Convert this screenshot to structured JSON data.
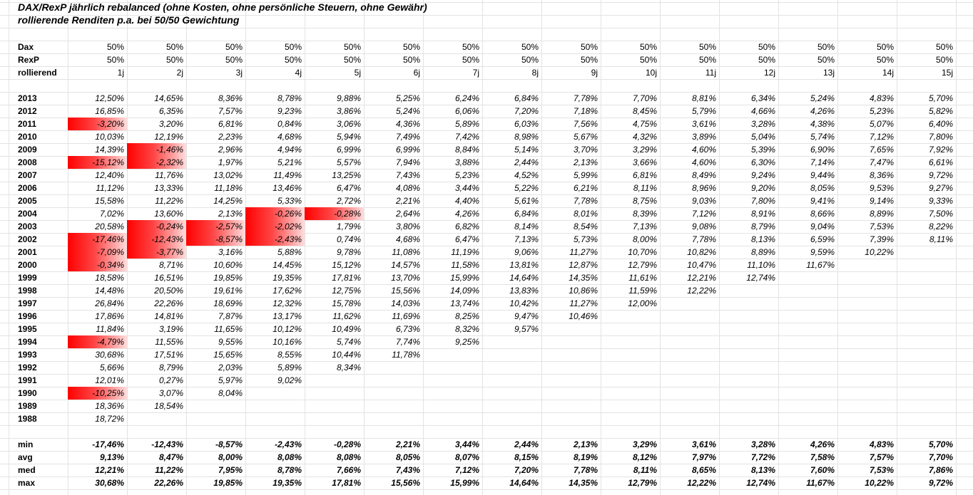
{
  "title_line1": "DAX/RexP jährlich rebalanced (ohne Kosten, ohne persönliche Steuern, ohne Gewähr)",
  "title_line2": "rollierende Renditen p.a. bei 50/50 Gewichtung",
  "negative_color": "#ff0000",
  "header_rows": [
    {
      "label": "Dax",
      "values": [
        "50%",
        "50%",
        "50%",
        "50%",
        "50%",
        "50%",
        "50%",
        "50%",
        "50%",
        "50%",
        "50%",
        "50%",
        "50%",
        "50%",
        "50%"
      ]
    },
    {
      "label": "RexP",
      "values": [
        "50%",
        "50%",
        "50%",
        "50%",
        "50%",
        "50%",
        "50%",
        "50%",
        "50%",
        "50%",
        "50%",
        "50%",
        "50%",
        "50%",
        "50%"
      ]
    },
    {
      "label": "rollierend",
      "values": [
        "1j",
        "2j",
        "3j",
        "4j",
        "5j",
        "6j",
        "7j",
        "8j",
        "9j",
        "10j",
        "11j",
        "12j",
        "13j",
        "14j",
        "15j"
      ]
    }
  ],
  "rows": [
    {
      "year": "2013",
      "values": [
        "12,50%",
        "14,65%",
        "8,36%",
        "8,78%",
        "9,88%",
        "5,25%",
        "6,24%",
        "6,84%",
        "7,78%",
        "7,70%",
        "8,81%",
        "6,34%",
        "5,24%",
        "4,83%",
        "5,70%"
      ]
    },
    {
      "year": "2012",
      "values": [
        "16,85%",
        "6,35%",
        "7,57%",
        "9,23%",
        "3,86%",
        "5,24%",
        "6,06%",
        "7,20%",
        "7,18%",
        "8,45%",
        "5,79%",
        "4,66%",
        "4,26%",
        "5,23%",
        "5,82%"
      ]
    },
    {
      "year": "2011",
      "values": [
        "-3,20%",
        "3,20%",
        "6,81%",
        "0,84%",
        "3,06%",
        "4,36%",
        "5,89%",
        "6,03%",
        "7,56%",
        "4,75%",
        "3,61%",
        "3,28%",
        "4,38%",
        "5,07%",
        "6,40%"
      ]
    },
    {
      "year": "2010",
      "values": [
        "10,03%",
        "12,19%",
        "2,23%",
        "4,68%",
        "5,94%",
        "7,49%",
        "7,42%",
        "8,98%",
        "5,67%",
        "4,32%",
        "3,89%",
        "5,04%",
        "5,74%",
        "7,12%",
        "7,80%"
      ]
    },
    {
      "year": "2009",
      "values": [
        "14,39%",
        "-1,46%",
        "2,96%",
        "4,94%",
        "6,99%",
        "6,99%",
        "8,84%",
        "5,14%",
        "3,70%",
        "3,29%",
        "4,60%",
        "5,39%",
        "6,90%",
        "7,65%",
        "7,92%"
      ]
    },
    {
      "year": "2008",
      "values": [
        "-15,12%",
        "-2,32%",
        "1,97%",
        "5,21%",
        "5,57%",
        "7,94%",
        "3,88%",
        "2,44%",
        "2,13%",
        "3,66%",
        "4,60%",
        "6,30%",
        "7,14%",
        "7,47%",
        "6,61%"
      ]
    },
    {
      "year": "2007",
      "values": [
        "12,40%",
        "11,76%",
        "13,02%",
        "11,49%",
        "13,25%",
        "7,43%",
        "5,23%",
        "4,52%",
        "5,99%",
        "6,81%",
        "8,49%",
        "9,24%",
        "9,44%",
        "8,36%",
        "9,72%"
      ]
    },
    {
      "year": "2006",
      "values": [
        "11,12%",
        "13,33%",
        "11,18%",
        "13,46%",
        "6,47%",
        "4,08%",
        "3,44%",
        "5,22%",
        "6,21%",
        "8,11%",
        "8,96%",
        "9,20%",
        "8,05%",
        "9,53%",
        "9,27%"
      ]
    },
    {
      "year": "2005",
      "values": [
        "15,58%",
        "11,22%",
        "14,25%",
        "5,33%",
        "2,72%",
        "2,21%",
        "4,40%",
        "5,61%",
        "7,78%",
        "8,75%",
        "9,03%",
        "7,80%",
        "9,41%",
        "9,14%",
        "9,33%"
      ]
    },
    {
      "year": "2004",
      "values": [
        "7,02%",
        "13,60%",
        "2,13%",
        "-0,26%",
        "-0,28%",
        "2,64%",
        "4,26%",
        "6,84%",
        "8,01%",
        "8,39%",
        "7,12%",
        "8,91%",
        "8,66%",
        "8,89%",
        "7,50%"
      ]
    },
    {
      "year": "2003",
      "values": [
        "20,58%",
        "-0,24%",
        "-2,57%",
        "-2,02%",
        "1,79%",
        "3,80%",
        "6,82%",
        "8,14%",
        "8,54%",
        "7,13%",
        "9,08%",
        "8,79%",
        "9,04%",
        "7,53%",
        "8,22%"
      ]
    },
    {
      "year": "2002",
      "values": [
        "-17,46%",
        "-12,43%",
        "-8,57%",
        "-2,43%",
        "0,74%",
        "4,68%",
        "6,47%",
        "7,13%",
        "5,73%",
        "8,00%",
        "7,78%",
        "8,13%",
        "6,59%",
        "7,39%",
        "8,11%"
      ]
    },
    {
      "year": "2001",
      "values": [
        "-7,09%",
        "-3,77%",
        "3,16%",
        "5,88%",
        "9,78%",
        "11,08%",
        "11,19%",
        "9,06%",
        "11,27%",
        "10,70%",
        "10,82%",
        "8,89%",
        "9,59%",
        "10,22%",
        ""
      ]
    },
    {
      "year": "2000",
      "values": [
        "-0,34%",
        "8,71%",
        "10,60%",
        "14,45%",
        "15,12%",
        "14,57%",
        "11,58%",
        "13,81%",
        "12,87%",
        "12,79%",
        "10,47%",
        "11,10%",
        "11,67%",
        "",
        ""
      ]
    },
    {
      "year": "1999",
      "values": [
        "18,58%",
        "16,51%",
        "19,85%",
        "19,35%",
        "17,81%",
        "13,70%",
        "15,99%",
        "14,64%",
        "14,35%",
        "11,61%",
        "12,21%",
        "12,74%",
        "",
        "",
        ""
      ]
    },
    {
      "year": "1998",
      "values": [
        "14,48%",
        "20,50%",
        "19,61%",
        "17,62%",
        "12,75%",
        "15,56%",
        "14,09%",
        "13,83%",
        "10,86%",
        "11,59%",
        "12,22%",
        "",
        "",
        "",
        ""
      ]
    },
    {
      "year": "1997",
      "values": [
        "26,84%",
        "22,26%",
        "18,69%",
        "12,32%",
        "15,78%",
        "14,03%",
        "13,74%",
        "10,42%",
        "11,27%",
        "12,00%",
        "",
        "",
        "",
        "",
        ""
      ]
    },
    {
      "year": "1996",
      "values": [
        "17,86%",
        "14,81%",
        "7,87%",
        "13,17%",
        "11,62%",
        "11,69%",
        "8,25%",
        "9,47%",
        "10,46%",
        "",
        "",
        "",
        "",
        "",
        ""
      ]
    },
    {
      "year": "1995",
      "values": [
        "11,84%",
        "3,19%",
        "11,65%",
        "10,12%",
        "10,49%",
        "6,73%",
        "8,32%",
        "9,57%",
        "",
        "",
        "",
        "",
        "",
        "",
        ""
      ]
    },
    {
      "year": "1994",
      "values": [
        "-4,79%",
        "11,55%",
        "9,55%",
        "10,16%",
        "5,74%",
        "7,74%",
        "9,25%",
        "",
        "",
        "",
        "",
        "",
        "",
        "",
        ""
      ]
    },
    {
      "year": "1993",
      "values": [
        "30,68%",
        "17,51%",
        "15,65%",
        "8,55%",
        "10,44%",
        "11,78%",
        "",
        "",
        "",
        "",
        "",
        "",
        "",
        "",
        ""
      ]
    },
    {
      "year": "1992",
      "values": [
        "5,66%",
        "8,79%",
        "2,03%",
        "5,89%",
        "8,34%",
        "",
        "",
        "",
        "",
        "",
        "",
        "",
        "",
        "",
        ""
      ]
    },
    {
      "year": "1991",
      "values": [
        "12,01%",
        "0,27%",
        "5,97%",
        "9,02%",
        "",
        "",
        "",
        "",
        "",
        "",
        "",
        "",
        "",
        "",
        ""
      ]
    },
    {
      "year": "1990",
      "values": [
        "-10,25%",
        "3,07%",
        "8,04%",
        "",
        "",
        "",
        "",
        "",
        "",
        "",
        "",
        "",
        "",
        "",
        ""
      ]
    },
    {
      "year": "1989",
      "values": [
        "18,36%",
        "18,54%",
        "",
        "",
        "",
        "",
        "",
        "",
        "",
        "",
        "",
        "",
        "",
        "",
        ""
      ]
    },
    {
      "year": "1988",
      "values": [
        "18,72%",
        "",
        "",
        "",
        "",
        "",
        "",
        "",
        "",
        "",
        "",
        "",
        "",
        "",
        ""
      ]
    }
  ],
  "stats": [
    {
      "label": "min",
      "values": [
        "-17,46%",
        "-12,43%",
        "-8,57%",
        "-2,43%",
        "-0,28%",
        "2,21%",
        "3,44%",
        "2,44%",
        "2,13%",
        "3,29%",
        "3,61%",
        "3,28%",
        "4,26%",
        "4,83%",
        "5,70%"
      ]
    },
    {
      "label": "avg",
      "values": [
        "9,13%",
        "8,47%",
        "8,00%",
        "8,08%",
        "8,08%",
        "8,05%",
        "8,07%",
        "8,15%",
        "8,19%",
        "8,12%",
        "7,97%",
        "7,72%",
        "7,58%",
        "7,57%",
        "7,70%"
      ]
    },
    {
      "label": "med",
      "values": [
        "12,21%",
        "11,22%",
        "7,95%",
        "8,78%",
        "7,66%",
        "7,43%",
        "7,12%",
        "7,20%",
        "7,78%",
        "8,11%",
        "8,65%",
        "8,13%",
        "7,60%",
        "7,53%",
        "7,86%"
      ]
    },
    {
      "label": "max",
      "values": [
        "30,68%",
        "22,26%",
        "19,85%",
        "19,35%",
        "17,81%",
        "15,56%",
        "15,99%",
        "14,64%",
        "14,35%",
        "12,79%",
        "12,22%",
        "12,74%",
        "11,67%",
        "10,22%",
        "9,72%"
      ]
    }
  ]
}
